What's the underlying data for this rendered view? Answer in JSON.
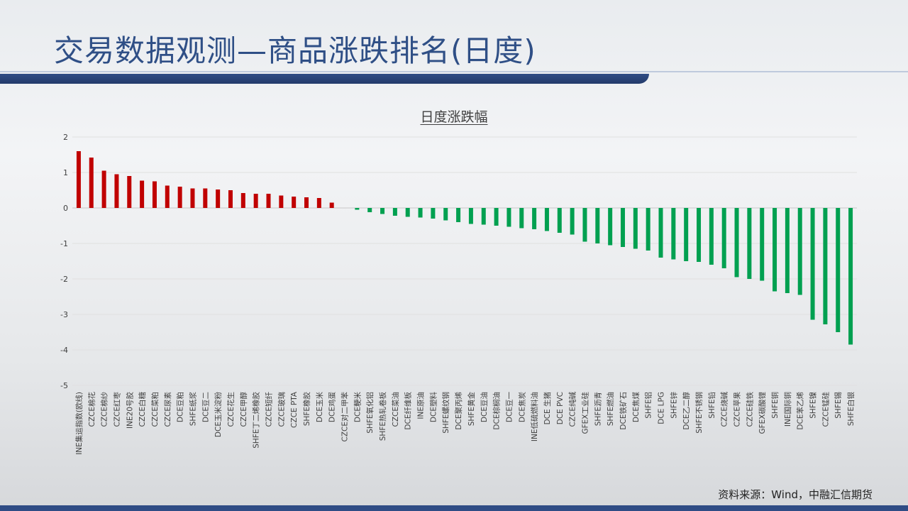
{
  "page": {
    "title": "交易数据观测—商品涨跌排名(日度)",
    "source": "资料来源：Wind，中融汇信期货"
  },
  "colors": {
    "up": "#c00000",
    "down": "#00a050",
    "title": "#2f4f86",
    "band": "#2f4c85"
  },
  "chart_data": {
    "type": "bar",
    "title": "日度涨跌幅",
    "xlabel": "",
    "ylabel": "",
    "ylim": [
      -5,
      2
    ],
    "yticks": [
      2,
      1,
      0,
      -1,
      -2,
      -3,
      -4,
      -5
    ],
    "grid": true,
    "legend": "none",
    "categories": [
      "INE集运指数(欧线)",
      "CZCE棉花",
      "CZCE棉纱",
      "CZCE红枣",
      "INE20号胶",
      "CZCE白糖",
      "CZCE菜粕",
      "CZCE尿素",
      "DCE豆粕",
      "SHFE纸浆",
      "DCE豆二",
      "DCE玉米淀粉",
      "CZCE花生",
      "CZCE甲醇",
      "SHFE丁二烯橡胶",
      "CZCE短纤",
      "CZCE玻璃",
      "CZCE PTA",
      "SHFE橡胶",
      "DCE玉米",
      "DCE鸡蛋",
      "CZCE对二甲苯",
      "DCE粳米",
      "SHFE氧化铝",
      "SHFE热轧卷板",
      "CZCE菜油",
      "DCE纤维板",
      "INE原油",
      "DCE塑料",
      "SHFE螺纹钢",
      "DCE聚丙烯",
      "SHFE黄金",
      "DCE豆油",
      "DCE棕榈油",
      "DCE豆一",
      "DCE焦炭",
      "INE低硫燃料油",
      "DCE 生猪",
      "DCE PVC",
      "CZCE纯碱",
      "GFEX工业硅",
      "SHFE沥青",
      "SHFE燃油",
      "DCE铁矿石",
      "DCE焦煤",
      "SHFE铝",
      "DCE LPG",
      "SHFE锌",
      "DCE乙二醇",
      "SHFE不锈钢",
      "SHFE铅",
      "CZCE烧碱",
      "CZCE苹果",
      "CZCE硅铁",
      "GFEX碳酸锂",
      "SHFE铜",
      "INE国际铜",
      "DCE苯乙烯",
      "SHFE镍",
      "CZCE锰硅",
      "SHFE锡",
      "SHFE白银"
    ],
    "values": [
      1.6,
      1.42,
      1.05,
      0.95,
      0.9,
      0.77,
      0.75,
      0.63,
      0.6,
      0.55,
      0.55,
      0.52,
      0.5,
      0.42,
      0.4,
      0.4,
      0.35,
      0.32,
      0.3,
      0.28,
      0.15,
      0.0,
      -0.05,
      -0.12,
      -0.17,
      -0.22,
      -0.25,
      -0.27,
      -0.3,
      -0.35,
      -0.4,
      -0.45,
      -0.47,
      -0.5,
      -0.53,
      -0.57,
      -0.6,
      -0.65,
      -0.7,
      -0.75,
      -0.95,
      -1.0,
      -1.05,
      -1.1,
      -1.15,
      -1.2,
      -1.4,
      -1.45,
      -1.5,
      -1.52,
      -1.6,
      -1.7,
      -1.95,
      -2.0,
      -2.05,
      -2.35,
      -2.4,
      -2.45,
      -3.15,
      -3.28,
      -3.5,
      -3.85
    ]
  }
}
